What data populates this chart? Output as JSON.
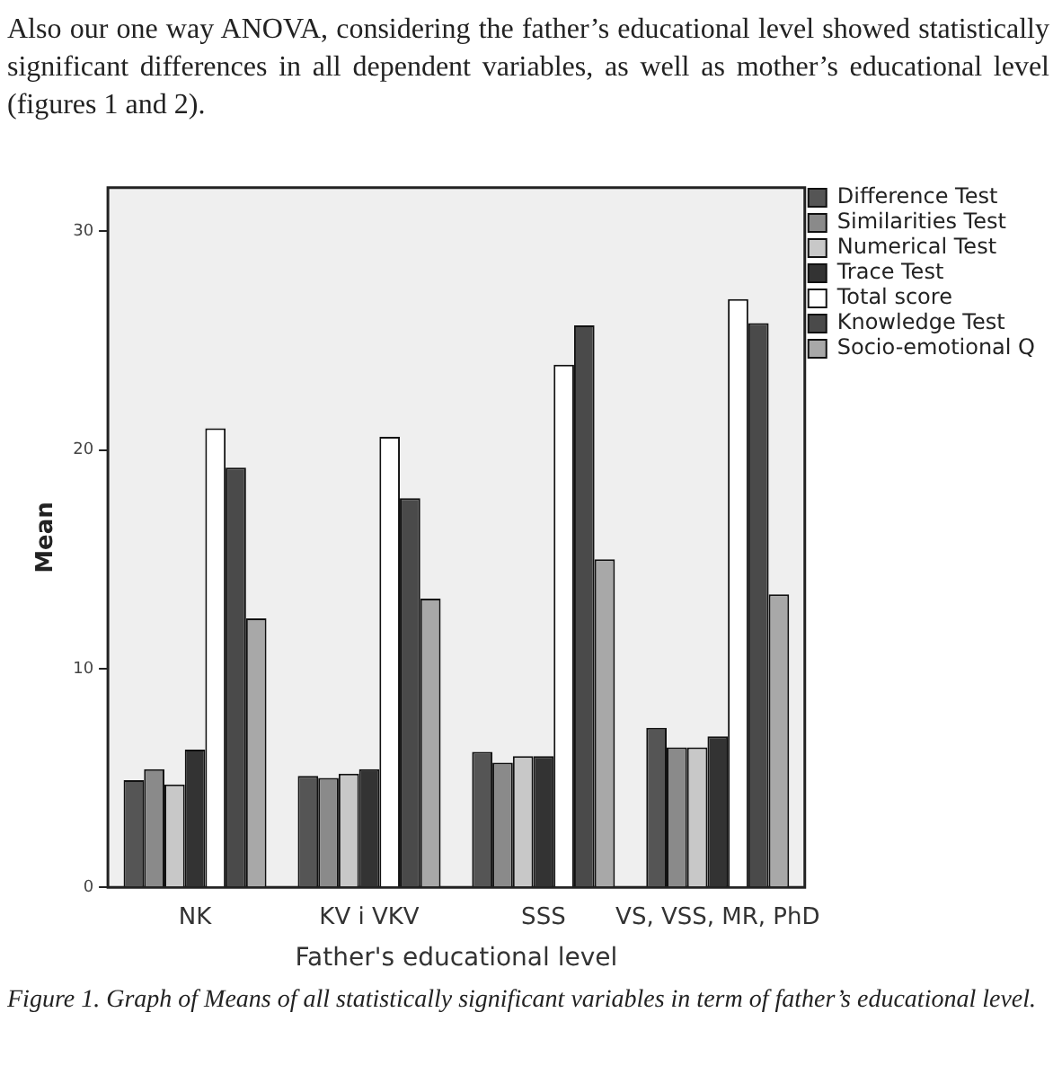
{
  "chart_data": {
    "type": "bar",
    "xlabel": "Father's educational level",
    "ylabel": "Mean",
    "categories": [
      "NK",
      "KV i VKV",
      "SSS",
      "VS, VSS, MR, PhD"
    ],
    "series": [
      {
        "name": "Difference Test",
        "color": "#555555",
        "values": [
          4.9,
          5.1,
          6.2,
          7.3
        ]
      },
      {
        "name": "Similarities Test",
        "color": "#8a8a8a",
        "values": [
          5.4,
          5.0,
          5.7,
          6.4
        ]
      },
      {
        "name": "Numerical Test",
        "color": "#c8c8c8",
        "values": [
          4.7,
          5.2,
          6.0,
          6.4
        ]
      },
      {
        "name": "Trace Test",
        "color": "#333333",
        "values": [
          6.3,
          5.4,
          6.0,
          6.9
        ]
      },
      {
        "name": "Total score",
        "color": "#ffffff",
        "values": [
          21.0,
          20.6,
          23.9,
          26.9
        ]
      },
      {
        "name": "Knowledge Test",
        "color": "#4a4a4a",
        "values": [
          19.2,
          17.8,
          25.7,
          25.8
        ]
      },
      {
        "name": "Socio-emotional Q",
        "color": "#a8a8a8",
        "values": [
          12.3,
          13.2,
          15.0,
          13.4
        ]
      }
    ],
    "ylim": [
      0,
      32
    ],
    "yticks": [
      0,
      10,
      20,
      30
    ],
    "grid": false,
    "legend": "top right",
    "annotations": [
      "Also our one way ANOVA, considering the father’s educational level showed statistically significant differences in all dependent variables, as well as mother’s educational level (figures 1 and 2).",
      "Figure 1. Graph of Means of all statistically significant variables in term of father’s educational level."
    ]
  }
}
